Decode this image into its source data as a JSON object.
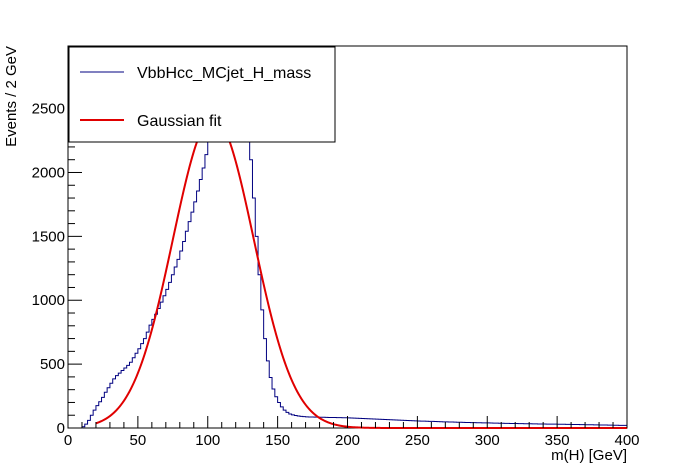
{
  "chart_data": {
    "type": "line",
    "xlabel": "m(H) [GeV]",
    "ylabel": "Events / 2 GeV",
    "xlim": [
      0,
      400
    ],
    "ylim": [
      0,
      2990
    ],
    "bin_width": 2,
    "x_ticks": [
      0,
      50,
      100,
      150,
      200,
      250,
      300,
      350,
      400
    ],
    "y_ticks": [
      0,
      500,
      1000,
      1500,
      2000,
      2500
    ],
    "grid": false,
    "legend_position": "top-left",
    "series": [
      {
        "name": "VbbHcc_MCjet_H_mass",
        "style": "histogram",
        "color": "#000080",
        "points": [
          [
            0,
            0
          ],
          [
            10,
            0
          ],
          [
            14,
            40
          ],
          [
            16,
            80
          ],
          [
            18,
            120
          ],
          [
            20,
            160
          ],
          [
            22,
            190
          ],
          [
            24,
            220
          ],
          [
            26,
            260
          ],
          [
            28,
            300
          ],
          [
            30,
            330
          ],
          [
            32,
            370
          ],
          [
            34,
            400
          ],
          [
            36,
            420
          ],
          [
            38,
            440
          ],
          [
            40,
            460
          ],
          [
            42,
            480
          ],
          [
            44,
            500
          ],
          [
            46,
            530
          ],
          [
            48,
            570
          ],
          [
            50,
            600
          ],
          [
            52,
            640
          ],
          [
            54,
            680
          ],
          [
            56,
            720
          ],
          [
            58,
            780
          ],
          [
            60,
            830
          ],
          [
            62,
            870
          ],
          [
            64,
            910
          ],
          [
            66,
            960
          ],
          [
            68,
            1010
          ],
          [
            70,
            1060
          ],
          [
            72,
            1110
          ],
          [
            74,
            1170
          ],
          [
            76,
            1230
          ],
          [
            78,
            1290
          ],
          [
            80,
            1350
          ],
          [
            82,
            1420
          ],
          [
            84,
            1500
          ],
          [
            86,
            1580
          ],
          [
            88,
            1650
          ],
          [
            90,
            1730
          ],
          [
            92,
            1810
          ],
          [
            94,
            1900
          ],
          [
            96,
            1990
          ],
          [
            98,
            2080
          ],
          [
            100,
            2200
          ],
          [
            102,
            2350
          ],
          [
            104,
            2500
          ],
          [
            106,
            2640
          ],
          [
            108,
            2750
          ],
          [
            110,
            2840
          ],
          [
            112,
            2890
          ],
          [
            114,
            2920
          ],
          [
            116,
            2930
          ],
          [
            118,
            2910
          ],
          [
            120,
            2870
          ],
          [
            122,
            2800
          ],
          [
            124,
            2720
          ],
          [
            126,
            2600
          ],
          [
            128,
            2450
          ],
          [
            130,
            2250
          ],
          [
            132,
            1950
          ],
          [
            134,
            1650
          ],
          [
            136,
            1350
          ],
          [
            138,
            1050
          ],
          [
            140,
            800
          ],
          [
            142,
            600
          ],
          [
            144,
            450
          ],
          [
            146,
            340
          ],
          [
            148,
            270
          ],
          [
            150,
            220
          ],
          [
            152,
            180
          ],
          [
            154,
            150
          ],
          [
            156,
            130
          ],
          [
            158,
            115
          ],
          [
            160,
            105
          ],
          [
            162,
            100
          ],
          [
            164,
            95
          ],
          [
            166,
            92
          ],
          [
            168,
            90
          ],
          [
            170,
            88
          ],
          [
            172,
            87
          ],
          [
            174,
            86
          ],
          [
            176,
            86
          ],
          [
            178,
            85
          ],
          [
            180,
            85
          ],
          [
            182,
            84
          ],
          [
            184,
            84
          ],
          [
            186,
            83
          ],
          [
            188,
            82
          ],
          [
            190,
            82
          ],
          [
            200,
            80
          ],
          [
            210,
            75
          ],
          [
            220,
            70
          ],
          [
            230,
            65
          ],
          [
            240,
            60
          ],
          [
            250,
            55
          ],
          [
            260,
            52
          ],
          [
            270,
            48
          ],
          [
            280,
            45
          ],
          [
            290,
            42
          ],
          [
            300,
            40
          ],
          [
            310,
            37
          ],
          [
            320,
            35
          ],
          [
            330,
            33
          ],
          [
            340,
            31
          ],
          [
            350,
            30
          ],
          [
            360,
            28
          ],
          [
            370,
            26
          ],
          [
            380,
            24
          ],
          [
            390,
            22
          ],
          [
            400,
            20
          ]
        ]
      },
      {
        "name": "Gaussian fit",
        "style": "smooth",
        "color": "#e00000",
        "gaussian": {
          "amplitude": 2430,
          "mean": 104,
          "sigma": 29
        },
        "x_range": [
          20,
          400
        ]
      }
    ]
  }
}
